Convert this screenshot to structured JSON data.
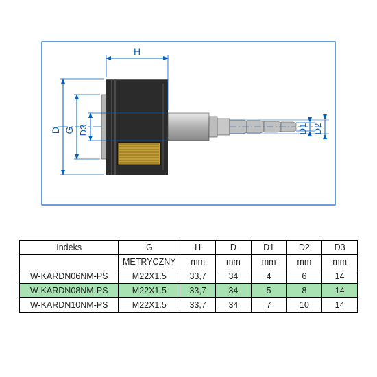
{
  "diagram": {
    "frame_color": "#0060c0",
    "dim_color": "#0060c0",
    "centerline_color": "#0060c0",
    "labels": {
      "H": "H",
      "D": "D",
      "G": "G",
      "D1": "D1",
      "D2": "D2",
      "D3": "D3"
    },
    "label_fontsize": 14,
    "body_color_dark": "#2b2b2b",
    "body_color_gray": "#b5b5b5",
    "body_color_brass": "#c4a03a",
    "body_color_brass_dark": "#8a6c1a"
  },
  "table": {
    "headers": [
      "Indeks",
      "G",
      "H",
      "D",
      "D1",
      "D2",
      "D3"
    ],
    "units_row": [
      "",
      "METRYCZNY",
      "mm",
      "mm",
      "mm",
      "mm",
      "mm"
    ],
    "rows": [
      [
        "W-KARDN06NM-PS",
        "M22X1.5",
        "33,7",
        "34",
        "4",
        "6",
        "14"
      ],
      [
        "W-KARDN08NM-PS",
        "M22X1.5",
        "33,7",
        "34",
        "5",
        "8",
        "14"
      ],
      [
        "W-KARDN10NM-PS",
        "M22X1.5",
        "33,7",
        "34",
        "7",
        "10",
        "14"
      ]
    ],
    "highlight_index": 1,
    "col_widths": [
      "145px",
      "90px",
      "52px",
      "52px",
      "52px",
      "52px",
      "52px"
    ]
  }
}
